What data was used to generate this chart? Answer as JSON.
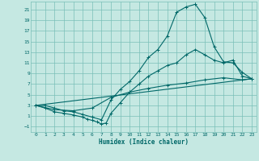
{
  "xlabel": "Humidex (Indice chaleur)",
  "bg_color": "#c5e8e2",
  "grid_color": "#7abfb8",
  "line_color": "#006868",
  "xlim": [
    -0.5,
    23.5
  ],
  "ylim": [
    -2.0,
    22.5
  ],
  "xticks": [
    0,
    1,
    2,
    3,
    4,
    5,
    6,
    7,
    8,
    9,
    10,
    11,
    12,
    13,
    14,
    15,
    16,
    17,
    18,
    19,
    20,
    21,
    22,
    23
  ],
  "yticks": [
    -1,
    1,
    3,
    5,
    7,
    9,
    11,
    13,
    15,
    17,
    19,
    21
  ],
  "curve1_x": [
    0,
    1,
    2,
    3,
    4,
    5,
    6,
    7,
    8,
    9,
    10,
    11,
    12,
    13,
    14,
    15,
    16,
    17,
    18,
    19,
    20,
    21,
    22,
    23
  ],
  "curve1_y": [
    3.0,
    3.0,
    2.5,
    2.0,
    1.8,
    1.3,
    0.8,
    0.3,
    4.0,
    6.0,
    7.5,
    9.5,
    12.0,
    13.5,
    16.0,
    20.5,
    21.5,
    22.0,
    19.5,
    14.0,
    11.2,
    11.0,
    9.2,
    8.0
  ],
  "curve2_x": [
    0,
    1,
    2,
    3,
    4,
    5,
    5.5,
    6,
    6.5,
    7,
    7.5,
    8,
    9,
    10,
    11,
    12,
    13,
    14,
    15,
    16,
    17,
    18,
    19,
    20,
    21,
    22,
    23
  ],
  "curve2_y": [
    3.0,
    2.5,
    1.8,
    1.5,
    1.2,
    0.8,
    0.4,
    0.2,
    -0.1,
    -0.5,
    -0.3,
    1.5,
    3.5,
    5.5,
    7.0,
    8.5,
    9.5,
    10.5,
    11.0,
    12.5,
    13.5,
    12.5,
    11.5,
    11.0,
    11.5,
    8.5,
    8.0
  ],
  "curve3_x": [
    0,
    2,
    4,
    6,
    8,
    10,
    12,
    14,
    16,
    18,
    20,
    22,
    23
  ],
  "curve3_y": [
    3.0,
    2.2,
    2.0,
    2.5,
    4.5,
    5.5,
    6.2,
    6.8,
    7.2,
    7.8,
    8.2,
    7.8,
    8.0
  ],
  "curve4_x": [
    0,
    23
  ],
  "curve4_y": [
    3.0,
    8.0
  ]
}
